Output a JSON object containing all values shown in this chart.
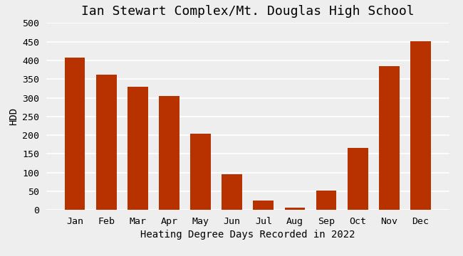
{
  "title": "Ian Stewart Complex/Mt. Douglas High School",
  "xlabel": "Heating Degree Days Recorded in 2022",
  "ylabel": "HDD",
  "categories": [
    "Jan",
    "Feb",
    "Mar",
    "Apr",
    "May",
    "Jun",
    "Jul",
    "Aug",
    "Sep",
    "Oct",
    "Nov",
    "Dec"
  ],
  "values": [
    408,
    362,
    330,
    305,
    204,
    96,
    25,
    7,
    51,
    166,
    385,
    452
  ],
  "bar_color": "#b83200",
  "ylim": [
    0,
    500
  ],
  "yticks": [
    0,
    50,
    100,
    150,
    200,
    250,
    300,
    350,
    400,
    450,
    500
  ],
  "background_color": "#eeeeee",
  "plot_bg_color": "#eeeeee",
  "title_fontsize": 13,
  "label_fontsize": 10,
  "tick_fontsize": 9.5,
  "grid_color": "#ffffff",
  "grid_linewidth": 1.2
}
